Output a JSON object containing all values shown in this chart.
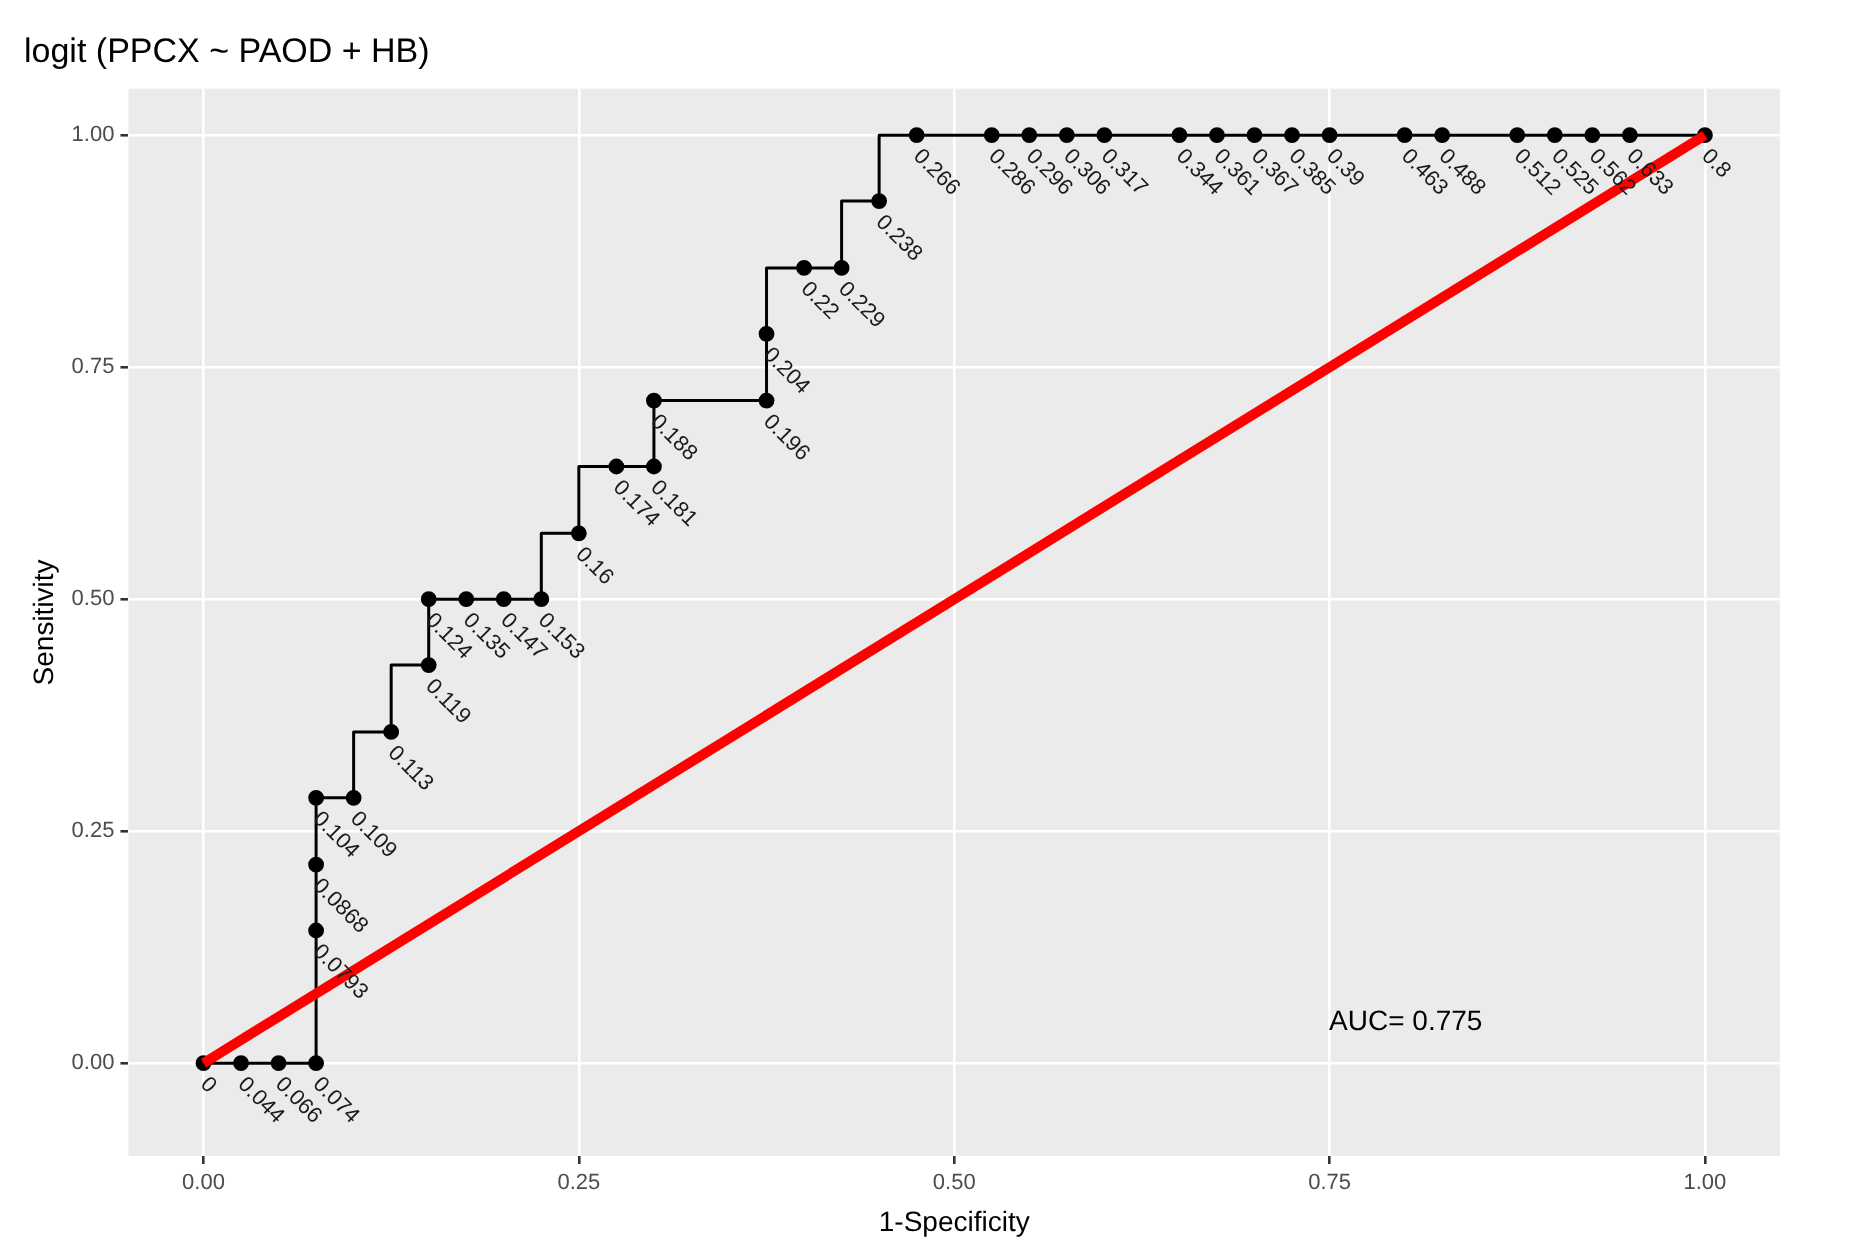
{
  "chart_data": {
    "type": "step",
    "title": "logit (PPCX ~ PAOD + HB)",
    "xlabel": "1-Specificity",
    "ylabel": "Sensitivity",
    "xlim": [
      -0.05,
      1.05
    ],
    "ylim": [
      -0.1,
      1.05
    ],
    "xticks": [
      {
        "value": 0,
        "label": "0.00"
      },
      {
        "value": 0.25,
        "label": "0.25"
      },
      {
        "value": 0.5,
        "label": "0.50"
      },
      {
        "value": 0.75,
        "label": "0.75"
      },
      {
        "value": 1,
        "label": "1.00"
      }
    ],
    "yticks": [
      {
        "value": 0,
        "label": "0.00"
      },
      {
        "value": 0.25,
        "label": "0.25"
      },
      {
        "value": 0.5,
        "label": "0.50"
      },
      {
        "value": 0.75,
        "label": "0.75"
      },
      {
        "value": 1,
        "label": "1.00"
      }
    ],
    "grid": true,
    "series": [
      {
        "color": "#000000",
        "marker": "circle",
        "x": [
          0,
          0.025,
          0.05,
          0.075,
          0.075,
          0.075,
          0.075,
          0.1,
          0.125,
          0.15,
          0.15,
          0.175,
          0.2,
          0.225,
          0.25,
          0.275,
          0.3,
          0.3,
          0.375,
          0.375,
          0.4,
          0.425,
          0.45,
          0.475,
          0.525,
          0.55,
          0.575,
          0.6,
          0.65,
          0.675,
          0.7,
          0.725,
          0.75,
          0.8,
          0.825,
          0.875,
          0.9,
          0.925,
          0.95,
          1
        ],
        "values": [
          0,
          0,
          0,
          0,
          0.143,
          0.214,
          0.286,
          0.286,
          0.357,
          0.429,
          0.5,
          0.5,
          0.5,
          0.5,
          0.571,
          0.643,
          0.643,
          0.714,
          0.714,
          0.786,
          0.857,
          0.857,
          0.929,
          1,
          1,
          1,
          1,
          1,
          1,
          1,
          1,
          1,
          1,
          1,
          1,
          1,
          1,
          1,
          1,
          1
        ]
      },
      {
        "type": "line",
        "color": "#ff0000",
        "marker": "none",
        "x": [
          0,
          1
        ],
        "values": [
          0,
          1
        ]
      }
    ],
    "annotations": [
      "AUC= 0.775",
      {
        "text": "0",
        "x": 0,
        "y": 0
      },
      {
        "text": "0.044",
        "x": 0.025,
        "y": 0
      },
      {
        "text": "0.066",
        "x": 0.05,
        "y": 0
      },
      {
        "text": "0.074",
        "x": 0.075,
        "y": 0
      },
      {
        "text": "0.0793",
        "x": 0.075,
        "y": 0.143
      },
      {
        "text": "0.0868",
        "x": 0.075,
        "y": 0.214
      },
      {
        "text": "0.104",
        "x": 0.075,
        "y": 0.286
      },
      {
        "text": "0.109",
        "x": 0.1,
        "y": 0.286
      },
      {
        "text": "0.113",
        "x": 0.125,
        "y": 0.357
      },
      {
        "text": "0.119",
        "x": 0.15,
        "y": 0.429
      },
      {
        "text": "0.124",
        "x": 0.15,
        "y": 0.5
      },
      {
        "text": "0.135",
        "x": 0.175,
        "y": 0.5
      },
      {
        "text": "0.147",
        "x": 0.2,
        "y": 0.5
      },
      {
        "text": "0.153",
        "x": 0.225,
        "y": 0.5
      },
      {
        "text": "0.16",
        "x": 0.25,
        "y": 0.571
      },
      {
        "text": "0.174",
        "x": 0.275,
        "y": 0.643
      },
      {
        "text": "0.181",
        "x": 0.3,
        "y": 0.643
      },
      {
        "text": "0.188",
        "x": 0.3,
        "y": 0.714
      },
      {
        "text": "0.196",
        "x": 0.375,
        "y": 0.714
      },
      {
        "text": "0.204",
        "x": 0.375,
        "y": 0.786
      },
      {
        "text": "0.22",
        "x": 0.4,
        "y": 0.857
      },
      {
        "text": "0.229",
        "x": 0.425,
        "y": 0.857
      },
      {
        "text": "0.238",
        "x": 0.45,
        "y": 0.929
      },
      {
        "text": "0.266",
        "x": 0.475,
        "y": 1
      },
      {
        "text": "0.286",
        "x": 0.525,
        "y": 1
      },
      {
        "text": "0.296",
        "x": 0.55,
        "y": 1
      },
      {
        "text": "0.306",
        "x": 0.575,
        "y": 1
      },
      {
        "text": "0.317",
        "x": 0.6,
        "y": 1
      },
      {
        "text": "0.344",
        "x": 0.65,
        "y": 1
      },
      {
        "text": "0.361",
        "x": 0.675,
        "y": 1
      },
      {
        "text": "0.367",
        "x": 0.7,
        "y": 1
      },
      {
        "text": "0.385",
        "x": 0.725,
        "y": 1
      },
      {
        "text": "0.39",
        "x": 0.75,
        "y": 1
      },
      {
        "text": "0.463",
        "x": 0.8,
        "y": 1
      },
      {
        "text": "0.488",
        "x": 0.825,
        "y": 1
      },
      {
        "text": "0.512",
        "x": 0.875,
        "y": 1
      },
      {
        "text": "0.525",
        "x": 0.9,
        "y": 1
      },
      {
        "text": "0.562",
        "x": 0.925,
        "y": 1
      },
      {
        "text": "0.633",
        "x": 0.95,
        "y": 1
      },
      {
        "text": "0.8",
        "x": 1,
        "y": 1
      }
    ]
  }
}
